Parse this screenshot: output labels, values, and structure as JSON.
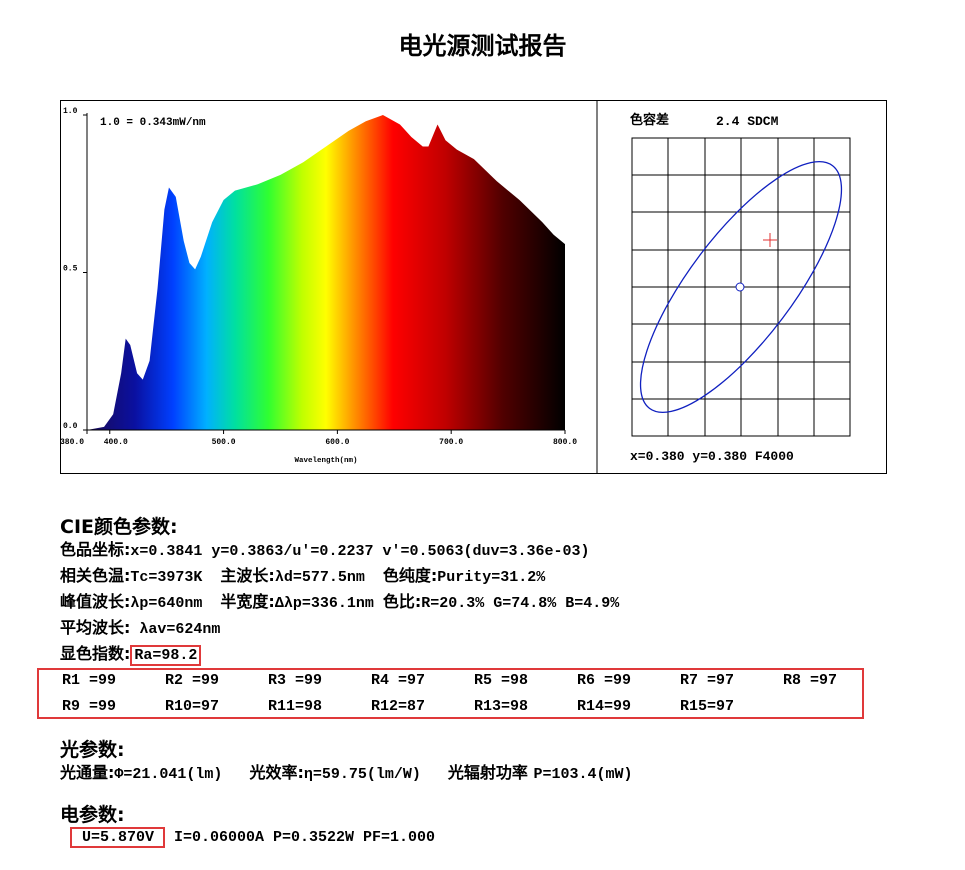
{
  "title": "电光源测试报告",
  "spectrum_chart": {
    "type": "area",
    "scale_note": "1.0 = 0.343mW/nm",
    "x_label": "Wavelength(nm)",
    "xlim": [
      380,
      800
    ],
    "xticks": [
      {
        "value": 380,
        "label": "380.0"
      },
      {
        "value": 400,
        "label": "400.0"
      },
      {
        "value": 500,
        "label": "500.0"
      },
      {
        "value": 600,
        "label": "600.0"
      },
      {
        "value": 700,
        "label": "700.0"
      },
      {
        "value": 800,
        "label": "800.0"
      }
    ],
    "ylim": [
      0,
      1
    ],
    "yticks": [
      {
        "value": 0,
        "label": "0.0"
      },
      {
        "value": 0.5,
        "label": "0.5"
      },
      {
        "value": 1,
        "label": "1.0"
      }
    ],
    "x": [
      380,
      395,
      403,
      410,
      414,
      418,
      424,
      429,
      435,
      442,
      448,
      452,
      458,
      465,
      470,
      475,
      480,
      490,
      500,
      510,
      530,
      550,
      570,
      590,
      610,
      625,
      640,
      655,
      665,
      675,
      680,
      688,
      695,
      705,
      720,
      740,
      760,
      780,
      790,
      800
    ],
    "values": [
      0,
      0.01,
      0.05,
      0.18,
      0.29,
      0.27,
      0.18,
      0.16,
      0.22,
      0.45,
      0.7,
      0.77,
      0.74,
      0.6,
      0.53,
      0.51,
      0.55,
      0.66,
      0.73,
      0.76,
      0.78,
      0.81,
      0.85,
      0.9,
      0.95,
      0.98,
      1.0,
      0.97,
      0.93,
      0.9,
      0.9,
      0.97,
      0.92,
      0.89,
      0.86,
      0.79,
      0.73,
      0.66,
      0.62,
      0.59
    ]
  },
  "tolerance": {
    "label": "色容差",
    "value": "2.4 SDCM",
    "footer": "x=0.380 y=0.380 F4000"
  },
  "cie": {
    "heading": "CIE颜色参数:",
    "lines": [
      [
        "色品坐标:",
        "x=0.3841 y=0.3863/u'=0.2237 v'=0.5063(duv=3.36e-03)"
      ],
      [
        "相关色温:",
        "Tc=3973K  ",
        "主波长:",
        "λd=577.5nm  ",
        "色纯度:",
        "Purity=31.2%"
      ],
      [
        "峰值波长:",
        "λp=640nm  ",
        "半宽度:",
        "Δλp=336.1nm ",
        "色比:",
        "R=20.3% G=74.8% B=4.9%"
      ],
      [
        "平均波长:",
        " λav=624nm"
      ],
      [
        "显色指数:",
        "Ra=98.2"
      ]
    ]
  },
  "render": [
    [
      "R1 =99",
      "R2 =99",
      "R3 =99",
      "R4 =97",
      "R5 =98",
      "R6 =99",
      "R7 =97",
      "R8 =97"
    ],
    [
      "R9 =99",
      "R10=97",
      "R11=98",
      "R12=87",
      "R13=98",
      "R14=99",
      "R15=97"
    ]
  ],
  "photometric": {
    "heading": "光参数:",
    "parts": [
      "光通量:",
      "Φ=21.041(lm)   ",
      "光效率:",
      "η=59.75(lm/W)   ",
      "光辐射功率 ",
      "P=103.4(mW)"
    ]
  },
  "electrical": {
    "heading": "电参数:",
    "parts": [
      "U=5.870V",
      " I=0.06000A P=0.3522W PF=1.000"
    ]
  }
}
